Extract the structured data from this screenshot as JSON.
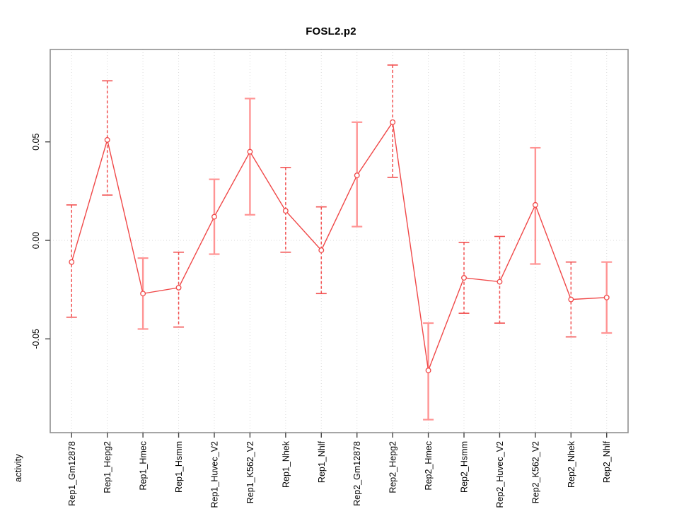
{
  "chart_data": {
    "type": "line",
    "title": "FOSL2.p2",
    "xlabel": "",
    "ylabel": "activity",
    "ylim": [
      -0.0976,
      0.0969
    ],
    "yticks": [
      0.05,
      0.0,
      -0.05
    ],
    "ytick_labels": [
      "0.05",
      "0.00",
      "-0.05"
    ],
    "legend": "none",
    "grid_vertical_dotted": true,
    "zero_line_dotted": true,
    "x_label_rotation": -90,
    "marker": "open-circle",
    "categories": [
      "Rep1_Gm12878",
      "Rep1_Hepg2",
      "Rep1_Hmec",
      "Rep1_Hsmm",
      "Rep1_Huvec_V2",
      "Rep1_K562_V2",
      "Rep1_Nhek",
      "Rep1_Nhlf",
      "Rep2_Gm12878",
      "Rep2_Hepg2",
      "Rep2_Hmec",
      "Rep2_Hsmm",
      "Rep2_Huvec_V2",
      "Rep2_K562_V2",
      "Rep2_Nhek",
      "Rep2_Nhlf"
    ],
    "series": [
      {
        "name": "activity",
        "values": [
          -0.011,
          0.051,
          -0.027,
          -0.024,
          0.012,
          0.045,
          0.015,
          -0.005,
          0.033,
          0.06,
          -0.066,
          -0.019,
          -0.021,
          0.018,
          -0.03,
          -0.029
        ],
        "upper": [
          0.018,
          0.081,
          -0.009,
          -0.006,
          0.031,
          0.072,
          0.037,
          0.017,
          0.06,
          0.089,
          -0.042,
          -0.001,
          0.002,
          0.047,
          -0.011,
          -0.011
        ],
        "lower": [
          -0.039,
          0.023,
          -0.045,
          -0.044,
          -0.007,
          0.013,
          -0.006,
          -0.027,
          0.007,
          0.032,
          -0.091,
          -0.037,
          -0.042,
          -0.012,
          -0.049,
          -0.047
        ],
        "error_bar_styles": [
          "dashed",
          "dashed",
          "solid",
          "dashed",
          "solid",
          "solid",
          "dashed",
          "dashed",
          "solid",
          "dashed",
          "solid",
          "dashed",
          "dashed",
          "solid",
          "dashed",
          "solid"
        ]
      }
    ],
    "colors": {
      "line": "#f04848",
      "marker_stroke": "#f04848",
      "error_bar_dashed": "#f25050",
      "error_bar_solid": "#ff9494",
      "grid": "#d9d9d9",
      "box_border": "#8f8f8f",
      "tick": "#444444",
      "text": "#000000"
    }
  }
}
